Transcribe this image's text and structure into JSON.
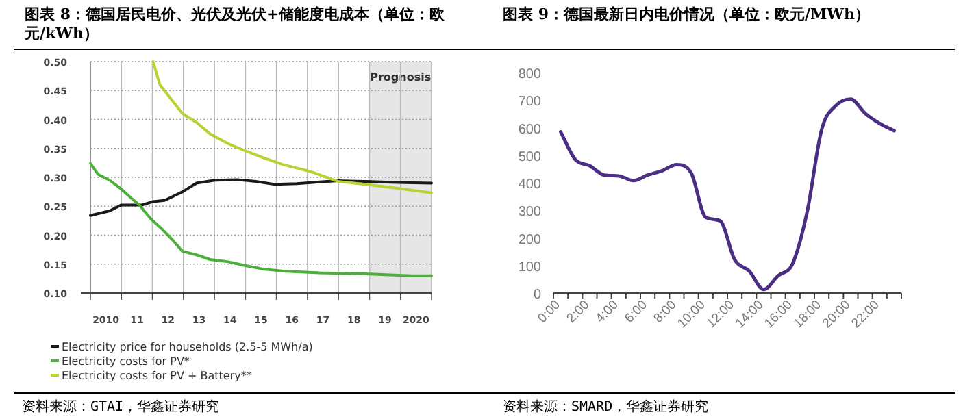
{
  "chart_data": [
    {
      "type": "line",
      "title": "图表 8：德国居民电价、光伏及光伏+储能度电成本（单位：欧元/kWh）",
      "xlim": [
        2009.5,
        2020.5
      ],
      "xticks": [
        {
          "value": 2010,
          "label": "2010"
        },
        {
          "value": 2011,
          "label": "11"
        },
        {
          "value": 2012,
          "label": "12"
        },
        {
          "value": 2013,
          "label": "13"
        },
        {
          "value": 2014,
          "label": "14"
        },
        {
          "value": 2015,
          "label": "15"
        },
        {
          "value": 2016,
          "label": "16"
        },
        {
          "value": 2017,
          "label": "17"
        },
        {
          "value": 2018,
          "label": "18"
        },
        {
          "value": 2019,
          "label": "19"
        },
        {
          "value": 2020,
          "label": "2020"
        }
      ],
      "ylim": [
        0.1,
        0.5
      ],
      "yticks": [
        {
          "value": 0.1,
          "label": "0.10"
        },
        {
          "value": 0.15,
          "label": "0.15"
        },
        {
          "value": 0.2,
          "label": "0.20"
        },
        {
          "value": 0.25,
          "label": "0.25"
        },
        {
          "value": 0.3,
          "label": "0.30"
        },
        {
          "value": 0.35,
          "label": "0.35"
        },
        {
          "value": 0.4,
          "label": "0.40"
        },
        {
          "value": 0.45,
          "label": "0.45"
        },
        {
          "value": 0.5,
          "label": "0.50"
        }
      ],
      "grid": true,
      "legend": "bottom",
      "bands": [
        {
          "axis": "x",
          "from": 2018.5,
          "to": 2020.5,
          "label": "Prognosis",
          "color": "#e6e6e6"
        }
      ],
      "series": [
        {
          "name": "Electricity price for households (2.5-5 MWh/a)",
          "color": "#1a1a1a",
          "x": [
            2009.5,
            2010.12,
            2010.49,
            2011.15,
            2011.52,
            2011.89,
            2012.47,
            2012.92,
            2013.51,
            2014.24,
            2014.83,
            2015.42,
            2016.16,
            2016.89,
            2017.48,
            2018.37,
            2019.4,
            2020.5
          ],
          "values": [
            0.234,
            0.242,
            0.252,
            0.252,
            0.258,
            0.26,
            0.275,
            0.29,
            0.295,
            0.296,
            0.293,
            0.288,
            0.289,
            0.292,
            0.294,
            0.293,
            0.291,
            0.29
          ]
        },
        {
          "name": "Electricity costs for PV*",
          "color": "#4caf3a",
          "x": [
            2009.5,
            2009.75,
            2010.12,
            2010.49,
            2010.86,
            2011.08,
            2011.45,
            2011.82,
            2012.18,
            2012.47,
            2012.92,
            2013.36,
            2013.95,
            2014.53,
            2015.12,
            2015.71,
            2016.89,
            2018.37,
            2019.84,
            2020.5
          ],
          "values": [
            0.324,
            0.305,
            0.295,
            0.28,
            0.262,
            0.252,
            0.228,
            0.21,
            0.19,
            0.172,
            0.166,
            0.158,
            0.154,
            0.147,
            0.141,
            0.138,
            0.135,
            0.133,
            0.13,
            0.13
          ]
        },
        {
          "name": "Electricity costs for PV + Battery**",
          "color": "#b5d334",
          "x": [
            2011.52,
            2011.74,
            2012.18,
            2012.47,
            2012.92,
            2013.36,
            2013.95,
            2014.53,
            2015.12,
            2015.71,
            2016.6,
            2017.48,
            2018.37,
            2019.4,
            2020.5
          ],
          "values": [
            0.5,
            0.46,
            0.43,
            0.41,
            0.395,
            0.375,
            0.358,
            0.345,
            0.333,
            0.322,
            0.31,
            0.293,
            0.288,
            0.281,
            0.273
          ]
        }
      ],
      "annotations": [
        "资料来源：GTAI，华鑫证券研究"
      ]
    },
    {
      "type": "line",
      "title": "图表 9：德国最新日内电价情况（单位：欧元/MWh）",
      "categories": [
        "0:00",
        null,
        "2:00",
        null,
        "4:00",
        null,
        "6:00",
        null,
        "8:00",
        null,
        "10:00",
        null,
        "12:00",
        null,
        "14:00",
        null,
        "16:00",
        null,
        "18:00",
        null,
        "20:00",
        null,
        "22:00",
        null
      ],
      "ylim": [
        0,
        800
      ],
      "yticks": [
        0,
        100,
        200,
        300,
        400,
        500,
        600,
        700,
        800
      ],
      "series": [
        {
          "color": "#4b2e83",
          "values": [
            585,
            485,
            462,
            428,
            425,
            408,
            428,
            444,
            466,
            436,
            275,
            262,
            121,
            80,
            13,
            63,
            107,
            295,
            593,
            681,
            704,
            652,
            615,
            589
          ]
        }
      ],
      "annotations": [
        "资料来源：SMARD，华鑫证券研究"
      ]
    }
  ]
}
